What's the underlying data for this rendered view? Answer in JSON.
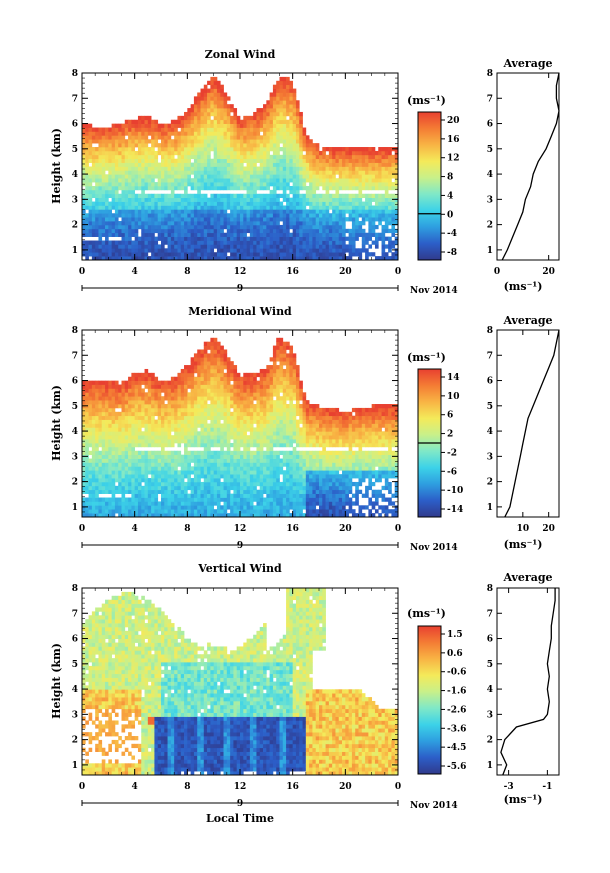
{
  "figure": {
    "date_label": "Nov 2014",
    "time_tick_labels": [
      "0",
      "4",
      "8",
      "12",
      "16",
      "20",
      "0"
    ],
    "day_label": "9",
    "xlabel": "Local Time",
    "ylabel": "Height (km)",
    "unit_label": "(ms⁻¹)",
    "avg_title": "Average"
  },
  "chart_data": [
    {
      "id": "zonal",
      "type": "heatmap",
      "title": "Zonal Wind",
      "xlabel": "",
      "ylabel": "Height (km)",
      "xlim_hours": [
        0,
        24
      ],
      "ylim_km": [
        0.6,
        8.0
      ],
      "y_ticks": [
        1,
        2,
        3,
        4,
        5,
        6,
        7,
        8
      ],
      "x_ticks_hours": [
        0,
        4,
        8,
        12,
        16,
        20,
        24
      ],
      "colorbar": {
        "levels": [
          "20",
          "16",
          "12",
          "8",
          "4",
          "0",
          "-4",
          "-8"
        ],
        "min": -10,
        "max": 22,
        "zero_line": 0
      },
      "upper_layer_top_km": [
        6.0,
        5.9,
        5.9,
        6.0,
        6.2,
        6.3,
        6.0,
        6.1,
        6.5,
        7.3,
        7.9,
        7.2,
        6.2,
        6.4,
        6.8,
        7.9,
        7.7,
        5.6,
        5.1,
        5.0,
        5.0,
        5.0,
        5.0,
        5.0
      ],
      "low_data_gap_km": [
        3.2,
        3.3
      ],
      "average_profile": {
        "title": "Average",
        "xlabel": "(ms⁻¹)",
        "x_ticks": [
          0,
          20
        ],
        "xlim": [
          0,
          24
        ],
        "height_km": [
          0.6,
          1.0,
          1.5,
          2.0,
          2.5,
          3.0,
          3.5,
          4.0,
          4.5,
          5.0,
          5.5,
          6.0,
          6.5,
          7.0,
          7.5,
          8.0
        ],
        "values": [
          2,
          4,
          6,
          8,
          10,
          11,
          13,
          14,
          16,
          19,
          21,
          23,
          24,
          23,
          23,
          24
        ]
      }
    },
    {
      "id": "meridional",
      "type": "heatmap",
      "title": "Meridional Wind",
      "xlabel": "",
      "ylabel": "Height (km)",
      "xlim_hours": [
        0,
        24
      ],
      "ylim_km": [
        0.6,
        8.0
      ],
      "y_ticks": [
        1,
        2,
        3,
        4,
        5,
        6,
        7,
        8
      ],
      "x_ticks_hours": [
        0,
        4,
        8,
        12,
        16,
        20,
        24
      ],
      "colorbar": {
        "levels": [
          "14",
          "10",
          "6",
          "2",
          "-2",
          "-6",
          "-10",
          "-14"
        ],
        "min": -16,
        "max": 16,
        "zero_line": 0
      },
      "upper_layer_top_km": [
        6.0,
        6.0,
        6.0,
        5.9,
        6.3,
        6.4,
        6.0,
        6.1,
        6.6,
        7.3,
        7.8,
        7.1,
        6.2,
        6.3,
        6.5,
        7.8,
        7.4,
        5.2,
        5.0,
        4.9,
        4.8,
        4.9,
        5.0,
        5.0
      ],
      "low_data_gap_km": [
        3.2,
        3.4
      ],
      "average_profile": {
        "title": "Average",
        "xlabel": "(ms⁻¹)",
        "x_ticks": [
          10,
          20
        ],
        "xlim": [
          0,
          24
        ],
        "height_km": [
          0.6,
          1.0,
          1.5,
          2.0,
          2.5,
          3.0,
          3.5,
          4.0,
          4.5,
          5.0,
          5.5,
          6.0,
          6.5,
          7.0,
          7.5,
          8.0
        ],
        "values": [
          3,
          5,
          6,
          7,
          8,
          9,
          10,
          11,
          12,
          14,
          16,
          18,
          20,
          22,
          23,
          24
        ]
      }
    },
    {
      "id": "vertical",
      "type": "heatmap",
      "title": "Vertical Wind",
      "xlabel": "Local Time",
      "ylabel": "Height (km)",
      "xlim_hours": [
        0,
        24
      ],
      "ylim_km": [
        0.6,
        8.0
      ],
      "y_ticks": [
        1,
        2,
        3,
        4,
        5,
        6,
        7,
        8
      ],
      "x_ticks_hours": [
        0,
        4,
        8,
        12,
        16,
        20,
        24
      ],
      "colorbar": {
        "levels": [
          "1.5",
          "0.6",
          "-0.6",
          "-1.6",
          "-2.6",
          "-3.6",
          "-4.5",
          "-5.6"
        ],
        "min": -6,
        "max": 2,
        "zero_line": null
      },
      "strong_downdraft_hours": [
        5.6,
        17.0
      ],
      "strong_downdraft_top_km": 2.9,
      "average_profile": {
        "title": "Average",
        "xlabel": "(ms⁻¹)",
        "x_ticks": [
          -3,
          -1
        ],
        "xlim": [
          -3.6,
          -0.4
        ],
        "height_km": [
          0.6,
          1.0,
          1.5,
          2.0,
          2.5,
          2.8,
          3.0,
          3.5,
          4.0,
          4.5,
          5.0,
          5.5,
          6.0,
          6.5,
          7.0,
          7.5,
          8.0
        ],
        "values": [
          -3.3,
          -3.1,
          -3.4,
          -3.2,
          -2.6,
          -1.2,
          -1.0,
          -0.9,
          -1.0,
          -0.9,
          -1.0,
          -0.9,
          -0.8,
          -0.8,
          -0.7,
          -0.6,
          -0.6
        ]
      }
    }
  ],
  "colors": {
    "colormap": [
      "#303a8c",
      "#2c5ec8",
      "#2e9ee0",
      "#3cd2e8",
      "#7fe8c8",
      "#c8f08a",
      "#f4ea5a",
      "#f8b444",
      "#f47c34",
      "#e84030"
    ],
    "missing": "#ffffff"
  }
}
